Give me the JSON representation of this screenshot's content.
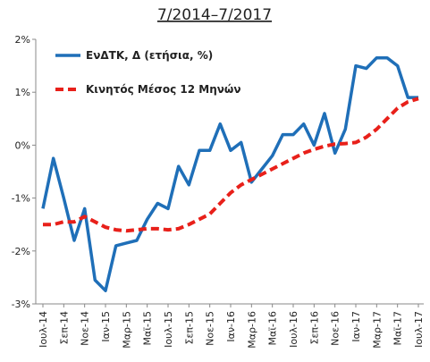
{
  "chart_data": {
    "type": "line",
    "title": "7/2014–7/2017",
    "categories": [
      "Ιουλ-14",
      null,
      "Σεπ-14",
      null,
      "Νοε-14",
      null,
      "Ιαν-15",
      null,
      "Μαρ-15",
      null,
      "Μαϊ-15",
      null,
      "Ιουλ-15",
      null,
      "Σεπ-15",
      null,
      "Νοε-15",
      null,
      "Ιαν-16",
      null,
      "Μαρ-16",
      null,
      "Μαϊ-16",
      null,
      "Ιουλ-16",
      null,
      "Σεπ-16",
      null,
      "Νοε-16",
      null,
      "Ιαν-17",
      null,
      "Μαρ-17",
      null,
      "Μαϊ-17",
      null,
      "Ιουλ-17"
    ],
    "series": [
      {
        "name": "ΕνΔΤΚ, Δ (ετήσια, %)",
        "color": "#1f6fb8",
        "dash": false,
        "values": [
          -1.2,
          -0.25,
          -1.0,
          -1.8,
          -1.2,
          -2.55,
          -2.75,
          -1.9,
          -1.85,
          -1.8,
          -1.4,
          -1.1,
          -1.2,
          -0.4,
          -0.75,
          -0.1,
          -0.1,
          0.4,
          -0.1,
          0.05,
          -0.7,
          -0.45,
          -0.2,
          0.2,
          0.2,
          0.4,
          0.0,
          0.6,
          -0.15,
          0.3,
          1.5,
          1.45,
          1.65,
          1.65,
          1.5,
          0.9,
          0.9
        ]
      },
      {
        "name": "Κινητός Μέσος 12 Μηνών",
        "color": "#e8201a",
        "dash": true,
        "values": [
          -1.5,
          -1.5,
          -1.45,
          -1.45,
          -1.35,
          -1.45,
          -1.55,
          -1.6,
          -1.62,
          -1.6,
          -1.58,
          -1.58,
          -1.6,
          -1.58,
          -1.5,
          -1.4,
          -1.3,
          -1.1,
          -0.9,
          -0.75,
          -0.65,
          -0.55,
          -0.45,
          -0.35,
          -0.25,
          -0.15,
          -0.08,
          -0.02,
          0.02,
          0.03,
          0.05,
          0.15,
          0.3,
          0.5,
          0.7,
          0.82,
          0.88
        ]
      }
    ],
    "ylim": [
      -3,
      2
    ],
    "yticks": [
      {
        "value": -3,
        "label": "-3%"
      },
      {
        "value": -2,
        "label": "-2%"
      },
      {
        "value": -1,
        "label": "-1%"
      },
      {
        "value": 0,
        "label": "0%"
      },
      {
        "value": 1,
        "label": "1%"
      },
      {
        "value": 2,
        "label": "2%"
      }
    ],
    "legend": "upper left",
    "grid": false
  }
}
